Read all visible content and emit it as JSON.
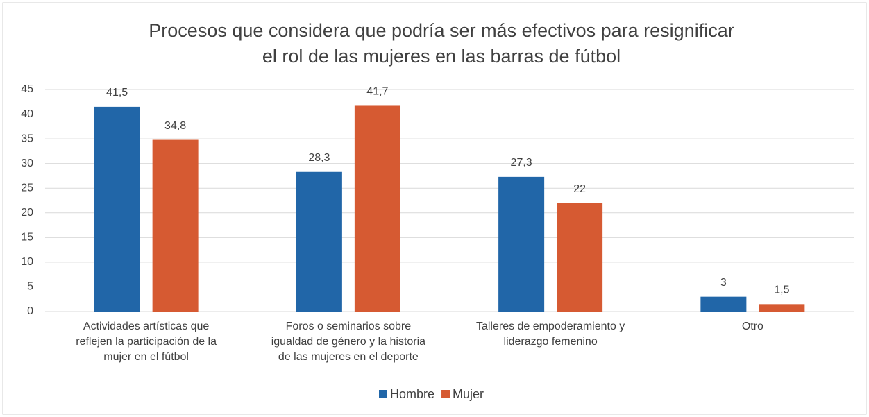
{
  "chart_data": {
    "type": "bar",
    "title": [
      "Procesos que considera que podría ser más efectivos para resignificar",
      "el rol de las mujeres en las barras de fútbol"
    ],
    "categories": [
      [
        "Actividades artísticas que",
        "reflejen la participación de la",
        "mujer en el fútbol"
      ],
      [
        "Foros o seminarios sobre",
        "igualdad de género y la historia",
        "de las mujeres en el deporte"
      ],
      [
        "Talleres de empoderamiento y",
        "liderazgo femenino"
      ],
      [
        "Otro"
      ]
    ],
    "series": [
      {
        "name": "Hombre",
        "color": "#2166a8",
        "values": [
          41.5,
          28.3,
          27.3,
          3
        ],
        "value_labels": [
          "41,5",
          "28,3",
          "27,3",
          "3"
        ]
      },
      {
        "name": "Mujer",
        "color": "#d65a32",
        "values": [
          34.8,
          41.7,
          22,
          1.5
        ],
        "value_labels": [
          "34,8",
          "41,7",
          "22",
          "1,5"
        ]
      }
    ],
    "ylim": [
      0,
      45
    ],
    "yticks": [
      0,
      5,
      10,
      15,
      20,
      25,
      30,
      35,
      40,
      45
    ],
    "grid": true,
    "legend": "bottom"
  }
}
